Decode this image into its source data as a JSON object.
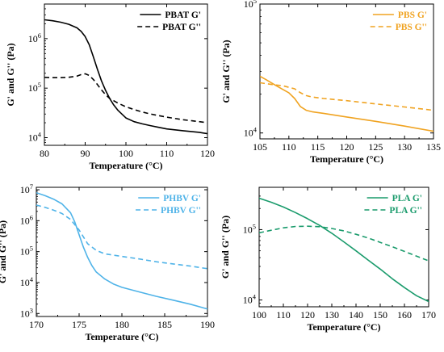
{
  "chart_data": [
    {
      "type": "line",
      "panel": "top-left",
      "xlabel": "Temperature (°C)",
      "ylabel": "G' and G'' (Pa)",
      "xlim": [
        80,
        120
      ],
      "ylim": [
        7000,
        5000000
      ],
      "yscale": "log",
      "x_ticks": [
        80,
        90,
        100,
        110,
        120
      ],
      "y_ticks": [
        {
          "v": 10000,
          "b": "10",
          "e": "4"
        },
        {
          "v": 100000,
          "b": "10",
          "e": "5"
        },
        {
          "v": 1000000,
          "b": "10",
          "e": "6"
        }
      ],
      "legend_position": "top-right",
      "series": [
        {
          "name": "PBAT G'",
          "color": "#000000",
          "dash": "solid",
          "x": [
            80,
            82,
            84,
            86,
            88,
            89,
            90,
            91,
            92,
            93,
            94,
            95,
            96,
            97,
            98,
            100,
            102,
            104,
            106,
            108,
            110,
            114,
            118,
            120
          ],
          "y": [
            2400000,
            2300000,
            2150000,
            1950000,
            1650000,
            1400000,
            1100000,
            750000,
            430000,
            240000,
            140000,
            90000,
            62000,
            46000,
            36000,
            25000,
            21000,
            19000,
            17500,
            16200,
            15000,
            13800,
            12800,
            12000
          ]
        },
        {
          "name": "PBAT G''",
          "color": "#000000",
          "dash": "dashed",
          "x": [
            80,
            82,
            84,
            86,
            88,
            89,
            90,
            91,
            92,
            93,
            94,
            95,
            96,
            98,
            100,
            102,
            104,
            106,
            110,
            114,
            118,
            120
          ],
          "y": [
            165000,
            163000,
            163000,
            166000,
            175000,
            188000,
            195000,
            180000,
            150000,
            118000,
            92000,
            74000,
            62000,
            50000,
            42000,
            37000,
            33000,
            30000,
            26000,
            23000,
            21000,
            20000
          ]
        }
      ]
    },
    {
      "type": "line",
      "panel": "top-right",
      "xlabel": "Temperature (°C)",
      "ylabel": "G' and G'' (Pa)",
      "xlim": [
        105,
        135
      ],
      "ylim": [
        9000,
        100000
      ],
      "yscale": "log",
      "x_ticks": [
        105,
        110,
        115,
        120,
        125,
        130,
        135
      ],
      "y_ticks": [
        {
          "v": 10000,
          "b": "10",
          "e": "4"
        },
        {
          "v": 100000,
          "b": "10",
          "e": "5"
        }
      ],
      "legend_position": "top-right",
      "series": [
        {
          "name": "PBS G'",
          "color": "#f0a321",
          "dash": "solid",
          "x": [
            105,
            106,
            108,
            110,
            111,
            112,
            113,
            114,
            116,
            120,
            125,
            130,
            135
          ],
          "y": [
            27500,
            26000,
            23000,
            20500,
            18500,
            16000,
            15000,
            14600,
            14200,
            13300,
            12300,
            11300,
            10300
          ]
        },
        {
          "name": "PBS G''",
          "color": "#f0a321",
          "dash": "dashed",
          "x": [
            105,
            107,
            109,
            111,
            112,
            113,
            114,
            116,
            120,
            125,
            130,
            135
          ],
          "y": [
            24500,
            23800,
            23200,
            22000,
            20500,
            19500,
            19000,
            18500,
            17800,
            16800,
            15900,
            15000
          ]
        }
      ]
    },
    {
      "type": "line",
      "panel": "bottom-left",
      "xlabel": "Temperature (°C)",
      "ylabel": "G' and G'' (Pa)",
      "xlim": [
        170,
        190
      ],
      "ylim": [
        800,
        12000000
      ],
      "yscale": "log",
      "x_ticks": [
        170,
        175,
        180,
        185,
        190
      ],
      "y_ticks": [
        {
          "v": 1000,
          "b": "10",
          "e": "3"
        },
        {
          "v": 10000,
          "b": "10",
          "e": "4"
        },
        {
          "v": 100000,
          "b": "10",
          "e": "5"
        },
        {
          "v": 1000000,
          "b": "10",
          "e": "6"
        },
        {
          "v": 10000000,
          "b": "10",
          "e": "7"
        }
      ],
      "legend_position": "top-right",
      "series": [
        {
          "name": "PHBV G'",
          "color": "#4fb3e8",
          "dash": "solid",
          "x": [
            170,
            171,
            172,
            173,
            174,
            174.5,
            175,
            175.5,
            176,
            176.5,
            177,
            178,
            179,
            180,
            182,
            184,
            186,
            188,
            190
          ],
          "y": [
            8000000,
            6500000,
            5000000,
            3500000,
            1800000,
            900000,
            350000,
            140000,
            65000,
            35000,
            22000,
            13000,
            9000,
            7000,
            5000,
            3600,
            2700,
            2000,
            1400
          ]
        },
        {
          "name": "PHBV G''",
          "color": "#4fb3e8",
          "dash": "dashed",
          "x": [
            170,
            171,
            172,
            173,
            174,
            175,
            175.5,
            176,
            177,
            178,
            180,
            182,
            184,
            186,
            188,
            190
          ],
          "y": [
            3200000,
            2700000,
            2200000,
            1700000,
            1100000,
            500000,
            300000,
            180000,
            110000,
            85000,
            70000,
            58000,
            47000,
            40000,
            34000,
            28000
          ]
        }
      ]
    },
    {
      "type": "line",
      "panel": "bottom-right",
      "xlabel": "Temperature (°C)",
      "ylabel": "G' and G'' (Pa)",
      "xlim": [
        100,
        170
      ],
      "ylim": [
        8000,
        400000
      ],
      "yscale": "log",
      "x_ticks": [
        100,
        110,
        120,
        130,
        140,
        150,
        160,
        170
      ],
      "y_ticks": [
        {
          "v": 10000,
          "b": "10",
          "e": "4"
        },
        {
          "v": 100000,
          "b": "10",
          "e": "5"
        }
      ],
      "legend_position": "top-right",
      "series": [
        {
          "name": "PLA G'",
          "color": "#1a9b6c",
          "dash": "solid",
          "x": [
            100,
            105,
            110,
            115,
            120,
            125,
            130,
            135,
            140,
            145,
            150,
            155,
            160,
            165,
            170
          ],
          "y": [
            280000,
            245000,
            210000,
            175000,
            143000,
            115000,
            89000,
            67000,
            50000,
            37000,
            27500,
            20000,
            15000,
            11500,
            9500
          ]
        },
        {
          "name": "PLA G''",
          "color": "#1a9b6c",
          "dash": "dashed",
          "x": [
            100,
            105,
            110,
            115,
            120,
            125,
            130,
            135,
            140,
            145,
            150,
            155,
            160,
            165,
            170
          ],
          "y": [
            90000,
            98000,
            106000,
            111000,
            112000,
            110000,
            104000,
            96000,
            86000,
            76000,
            66000,
            57000,
            49000,
            42000,
            36000
          ]
        }
      ]
    }
  ]
}
